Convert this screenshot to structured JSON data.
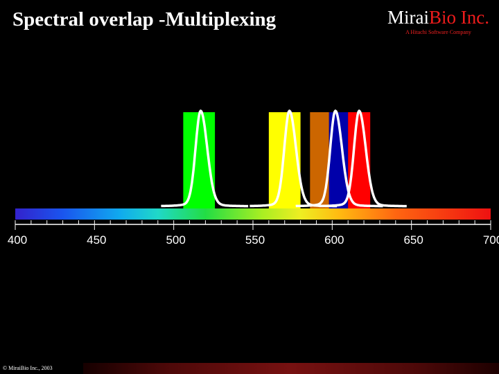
{
  "slide": {
    "title": "Spectral overlap -Multiplexing",
    "logo": {
      "brand_part1": "Mirai",
      "brand_part2": "Bio Inc.",
      "tagline": "A Hitachi Software Company"
    },
    "copyright": "© MiraiBio Inc., 2003"
  },
  "chart_data": {
    "type": "area",
    "title": "Spectral overlap -Multiplexing",
    "xlabel": "",
    "ylabel": "",
    "xlim": [
      400,
      700
    ],
    "ticks": [
      400,
      450,
      500,
      550,
      600,
      650,
      700
    ],
    "gradient_bar": true,
    "bands": [
      {
        "x_start": 506,
        "x_end": 526,
        "color": "#00ff00"
      },
      {
        "x_start": 560,
        "x_end": 580,
        "color": "#ffff00"
      },
      {
        "x_start": 586,
        "x_end": 598,
        "color": "#cc6600"
      },
      {
        "x_start": 598,
        "x_end": 610,
        "color": "#0000aa"
      },
      {
        "x_start": 610,
        "x_end": 624,
        "color": "#ff0000"
      }
    ],
    "series": [
      {
        "peak": 517,
        "color": "#ffffff"
      },
      {
        "peak": 573,
        "color": "#ffffff"
      },
      {
        "peak": 602,
        "color": "#ffffff"
      },
      {
        "peak": 617,
        "color": "#ffffff"
      }
    ]
  }
}
